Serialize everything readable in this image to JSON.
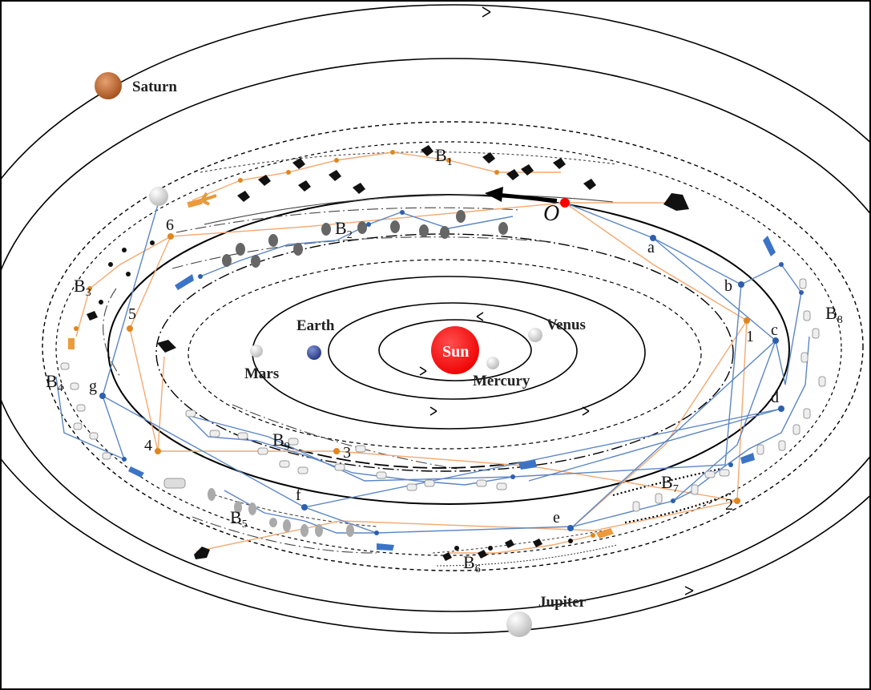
{
  "planets": {
    "saturn": {
      "label": "Saturn",
      "color": "#b86a35"
    },
    "jupiter": {
      "label": "Jupiter",
      "color": "#dcdcdc"
    },
    "earth": {
      "label": "Earth",
      "color": "#3c4f9a"
    },
    "mars": {
      "label": "Mars",
      "color": "#e6e6e6"
    },
    "venus": {
      "label": "Venus",
      "color": "#e6e6e6"
    },
    "mercury": {
      "label": "Mercury",
      "color": "#e6e6e6"
    },
    "sun": {
      "label": "Sun",
      "color": "#ff1a1a"
    }
  },
  "origin": {
    "label": "O",
    "color": "#ff0000"
  },
  "belts": [
    {
      "id": "b1",
      "letter": "B",
      "sub": "1"
    },
    {
      "id": "b2",
      "letter": "B",
      "sub": "2"
    },
    {
      "id": "b3",
      "letter": "B",
      "sub": "3"
    },
    {
      "id": "b4",
      "letter": "B",
      "sub": "4"
    },
    {
      "id": "b5",
      "letter": "B",
      "sub": "5"
    },
    {
      "id": "b6",
      "letter": "B",
      "sub": "6"
    },
    {
      "id": "b7",
      "letter": "B",
      "sub": "7"
    },
    {
      "id": "b8",
      "letter": "B",
      "sub": "8"
    },
    {
      "id": "b9",
      "letter": "B",
      "sub": "9"
    }
  ],
  "route_orange": {
    "color": "#f4a971",
    "node_color": "#e0861e",
    "stops": [
      "1",
      "2",
      "3",
      "4",
      "5",
      "6"
    ]
  },
  "route_blue": {
    "color": "#5b86c4",
    "node_color": "#2e5fae",
    "stops": [
      "a",
      "b",
      "c",
      "d",
      "e",
      "f",
      "g"
    ]
  }
}
